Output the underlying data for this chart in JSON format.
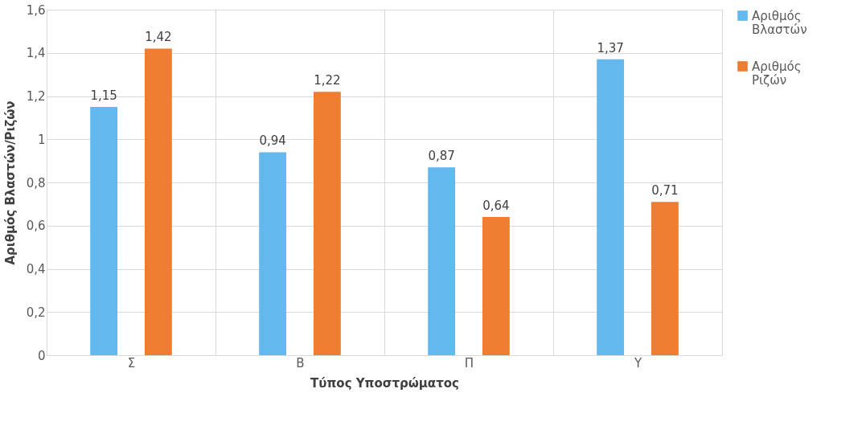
{
  "chart_data": {
    "type": "bar",
    "xlabel": "Τύπος Υποστρώματος",
    "ylabel": "Αριθμός Βλαστών/Ριζών",
    "categories": [
      "Σ",
      "Β",
      "Π",
      "Υ"
    ],
    "series": [
      {
        "name": "Αριθμός Βλαστών",
        "color": "#63b8ee",
        "values": [
          1.15,
          0.94,
          0.87,
          1.37
        ],
        "value_labels": [
          "1,15",
          "0,94",
          "0,87",
          "1,37"
        ]
      },
      {
        "name": "Αριθμός Ριζών",
        "color": "#ed7d31",
        "values": [
          1.42,
          1.22,
          0.64,
          0.71
        ],
        "value_labels": [
          "1,42",
          "1,22",
          "0,64",
          "0,71"
        ]
      }
    ],
    "ylim": [
      0,
      1.6
    ],
    "yticks": [
      0,
      {
        "value": 0.2,
        "label": "0,2"
      },
      {
        "value": 0.4,
        "label": "0,4"
      },
      {
        "value": 0.6,
        "label": "0,6"
      },
      {
        "value": 0.8,
        "label": "0,8"
      },
      1,
      {
        "value": 1.2,
        "label": "1,2"
      },
      {
        "value": 1.4,
        "label": "1,4"
      },
      {
        "value": 1.6,
        "label": "1,6"
      }
    ],
    "grid": true,
    "legend": "right"
  }
}
